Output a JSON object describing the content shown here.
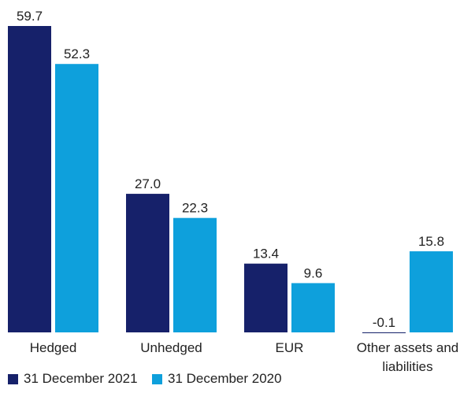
{
  "chart_data": {
    "type": "bar",
    "categories": [
      "Hedged",
      "Unhedged",
      "EUR",
      "Other assets and liabilities"
    ],
    "series": [
      {
        "name": "31 December 2021",
        "color": "#16216a",
        "values": [
          59.7,
          27.0,
          13.4,
          -0.1
        ],
        "value_labels": [
          "59.7",
          "27.0",
          "13.4",
          "-0.1"
        ]
      },
      {
        "name": "31 December 2020",
        "color": "#0ea0dc",
        "values": [
          52.3,
          22.3,
          9.6,
          15.8
        ],
        "value_labels": [
          "52.3",
          "22.3",
          "9.6",
          "15.8"
        ]
      }
    ],
    "legend": "bottom-left"
  }
}
